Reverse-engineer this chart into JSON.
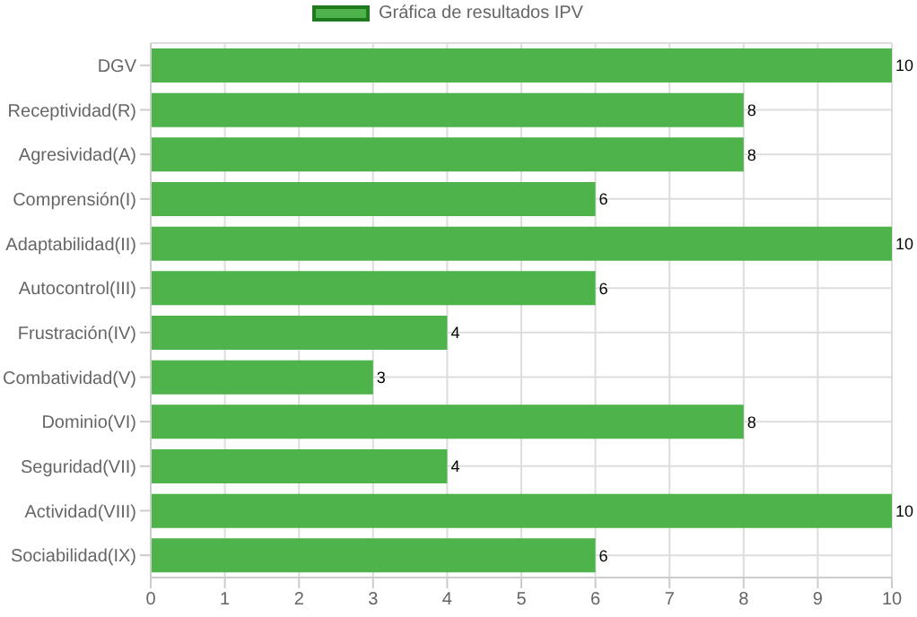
{
  "chart_data": {
    "type": "bar",
    "orientation": "horizontal",
    "categories": [
      "DGV",
      "Receptividad(R)",
      "Agresividad(A)",
      "Comprensión(I)",
      "Adaptabilidad(II)",
      "Autocontrol(III)",
      "Frustración(IV)",
      "Combatividad(V)",
      "Dominio(VI)",
      "Seguridad(VII)",
      "Actividad(VIII)",
      "Sociabilidad(IX)"
    ],
    "series": [
      {
        "name": "Gráfica de resultados IPV",
        "color": "#4db34a",
        "values": [
          10,
          8,
          8,
          6,
          10,
          6,
          4,
          3,
          8,
          4,
          10,
          6
        ]
      }
    ],
    "xlim": [
      0,
      10
    ],
    "xticks": [
      0,
      1,
      2,
      3,
      4,
      5,
      6,
      7,
      8,
      9,
      10
    ],
    "grid": true,
    "legend": "top",
    "data_labels": true
  }
}
